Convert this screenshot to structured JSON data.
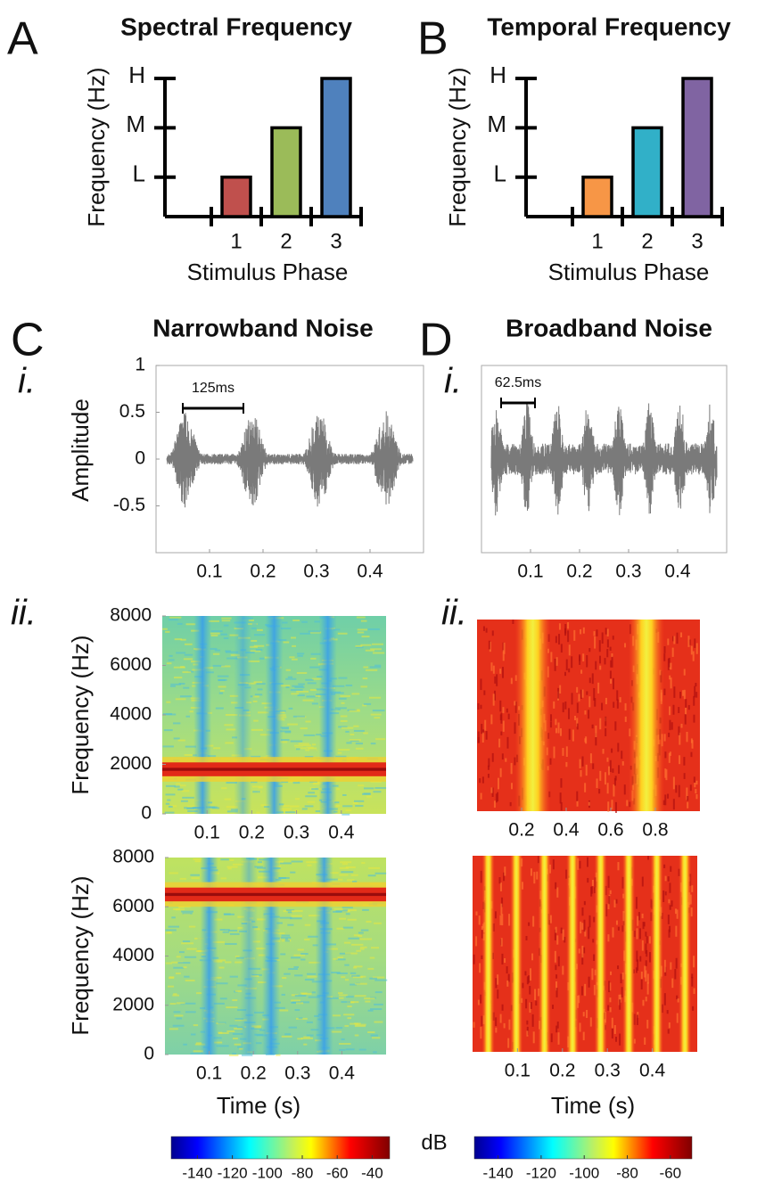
{
  "chart_data": [
    {
      "type": "bar",
      "panel": "A",
      "title": "Spectral Frequency",
      "ylabel": "Frequency (Hz)",
      "xlabel": "Stimulus Phase",
      "categories": [
        "1",
        "2",
        "3"
      ],
      "values": [
        1,
        2,
        3
      ],
      "colors": [
        "#c0504d",
        "#9bbb59",
        "#4f81bd"
      ],
      "ylim": [
        0.2,
        3
      ],
      "yticks": [
        {
          "value": 1,
          "label": "L"
        },
        {
          "value": 2,
          "label": "M"
        },
        {
          "value": 3,
          "label": "H"
        }
      ]
    },
    {
      "type": "bar",
      "panel": "B",
      "title": "Temporal Frequency",
      "ylabel": "Frequency (Hz)",
      "xlabel": "Stimulus Phase",
      "categories": [
        "1",
        "2",
        "3"
      ],
      "values": [
        1,
        2,
        3
      ],
      "colors": [
        "#f79646",
        "#31b0c8",
        "#8064a2"
      ],
      "ylim": [
        0.2,
        3
      ],
      "yticks": [
        {
          "value": 1,
          "label": "L"
        },
        {
          "value": 2,
          "label": "M"
        },
        {
          "value": 3,
          "label": "H"
        }
      ]
    },
    {
      "type": "waveform",
      "panel": "C",
      "title": "Narrowband Noise",
      "subpanel": "i.",
      "ylabel": "Amplitude",
      "scale_bar_label": "125ms",
      "xlim": [
        0,
        0.5
      ],
      "xticks": [
        0.1,
        0.2,
        0.3,
        0.4
      ],
      "ylim": [
        -1,
        1
      ],
      "yticks": [
        -0.5,
        0,
        0.5,
        1
      ]
    },
    {
      "type": "waveform",
      "panel": "D",
      "title": "Broadband Noise",
      "subpanel": "i.",
      "scale_bar_label": "62.5ms",
      "xlim": [
        0,
        0.5
      ],
      "xticks": [
        0.1,
        0.2,
        0.3,
        0.4
      ],
      "ylim": [
        -1,
        1
      ]
    },
    {
      "type": "heatmap",
      "subpanel": "ii.",
      "ylabel": "Frequency (Hz)",
      "xlim": [
        0,
        0.5
      ],
      "xticks": [
        0.1,
        0.2,
        0.3,
        0.4
      ],
      "ylim": [
        0,
        8000
      ],
      "yticks": [
        0,
        2000,
        4000,
        6000,
        8000
      ]
    },
    {
      "type": "heatmap",
      "ylabel": "Frequency (Hz)",
      "xlabel": "Time (s)",
      "xlim": [
        0,
        0.5
      ],
      "xticks": [
        0.1,
        0.2,
        0.3,
        0.4
      ],
      "ylim": [
        0,
        8000
      ],
      "yticks": [
        0,
        2000,
        4000,
        6000,
        8000
      ]
    },
    {
      "type": "heatmap",
      "subpanel": "ii.",
      "xlim": [
        0,
        1
      ],
      "xticks": [
        0.2,
        0.4,
        0.6,
        0.8
      ]
    },
    {
      "type": "heatmap",
      "xlabel": "Time (s)",
      "xlim": [
        0,
        0.5
      ],
      "xticks": [
        0.1,
        0.2,
        0.3,
        0.4
      ]
    },
    {
      "type": "colorbar",
      "label": "dB",
      "colormap": "jet",
      "lim": [
        -155,
        -30
      ],
      "ticks": [
        -140,
        -120,
        -100,
        -80,
        -60,
        -40
      ]
    },
    {
      "type": "colorbar",
      "colormap": "jet",
      "lim": [
        -151,
        -50
      ],
      "ticks": [
        -140,
        -120,
        -100,
        -80,
        -60
      ]
    }
  ]
}
